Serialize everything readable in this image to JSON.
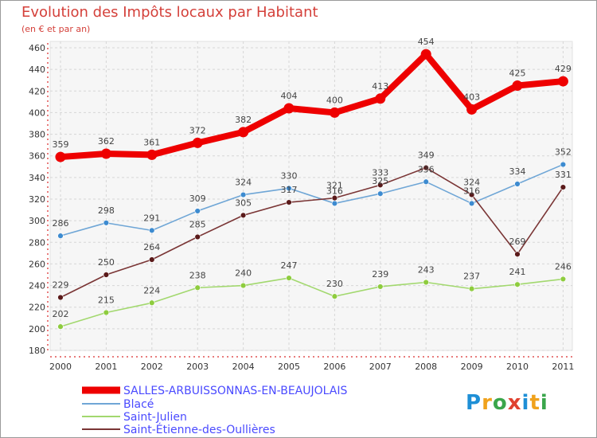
{
  "chart_data": {
    "type": "line",
    "title": "Evolution des Impôts locaux par Habitant",
    "subtitle": "(en € et par an)",
    "xlabel": "",
    "ylabel": "",
    "categories": [
      "2000",
      "2001",
      "2002",
      "2003",
      "2004",
      "2005",
      "2006",
      "2007",
      "2008",
      "2009",
      "2010",
      "2011"
    ],
    "ylim": [
      180,
      460
    ],
    "yticks": [
      180,
      200,
      220,
      240,
      260,
      280,
      300,
      320,
      340,
      360,
      380,
      400,
      420,
      440,
      460
    ],
    "grid": true,
    "legend_position": "bottom-left",
    "series": [
      {
        "name": "SALLES-ARBUISSONNAS-EN-BEAUJOLAIS",
        "color": "#ee0000",
        "marker": "#ee0000",
        "style": "thick",
        "values": [
          359,
          362,
          361,
          372,
          382,
          404,
          400,
          413,
          454,
          403,
          425,
          429
        ]
      },
      {
        "name": "Blacé",
        "color": "#6fa6d6",
        "marker": "#3d8bd0",
        "style": "thin",
        "values": [
          286,
          298,
          291,
          309,
          324,
          330,
          316,
          325,
          336,
          316,
          334,
          352
        ]
      },
      {
        "name": "Saint-Julien",
        "color": "#a2d86e",
        "marker": "#8ecc3e",
        "style": "thin",
        "values": [
          202,
          215,
          224,
          238,
          240,
          247,
          230,
          239,
          243,
          237,
          241,
          246
        ]
      },
      {
        "name": "Saint-Étienne-des-Oullières",
        "color": "#7a3535",
        "marker": "#5a1a1a",
        "style": "thin",
        "values": [
          229,
          250,
          264,
          285,
          305,
          317,
          321,
          333,
          349,
          324,
          269,
          331
        ]
      }
    ]
  },
  "logo_letters": [
    "P",
    "r",
    "o",
    "x",
    "i",
    "t",
    "i"
  ]
}
